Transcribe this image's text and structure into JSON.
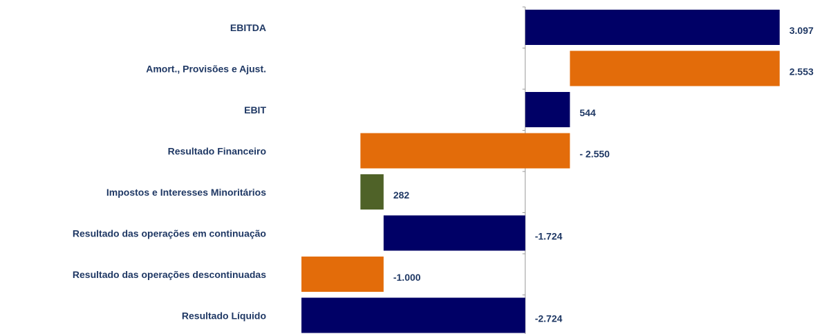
{
  "chart_data": {
    "type": "waterfall-bar-horizontal",
    "categories": [
      "EBITDA",
      "Amort., Provisões e Ajust.",
      "EBIT",
      "Resultado Financeiro",
      "Impostos e Interesses  Minoritários",
      "Resultado das operações em continuação",
      "Resultado das operações descontinuadas",
      "Resultado Líquido"
    ],
    "values": [
      3097,
      2553,
      544,
      -2550,
      282,
      -1724,
      -1000,
      -2724
    ],
    "value_labels": [
      "3.097",
      "2.553",
      "544",
      "- 2.550",
      "282",
      "-1.724",
      "-1.000",
      "-2.724"
    ],
    "measure": [
      "total",
      "decrease",
      "total",
      "relative",
      "relative",
      "total",
      "relative",
      "total"
    ],
    "colors": [
      "#000066",
      "#e36c0a",
      "#000066",
      "#e36c0a",
      "#4f6228",
      "#000066",
      "#e36c0a",
      "#000066"
    ],
    "xlim": [
      -2800,
      3200
    ]
  }
}
